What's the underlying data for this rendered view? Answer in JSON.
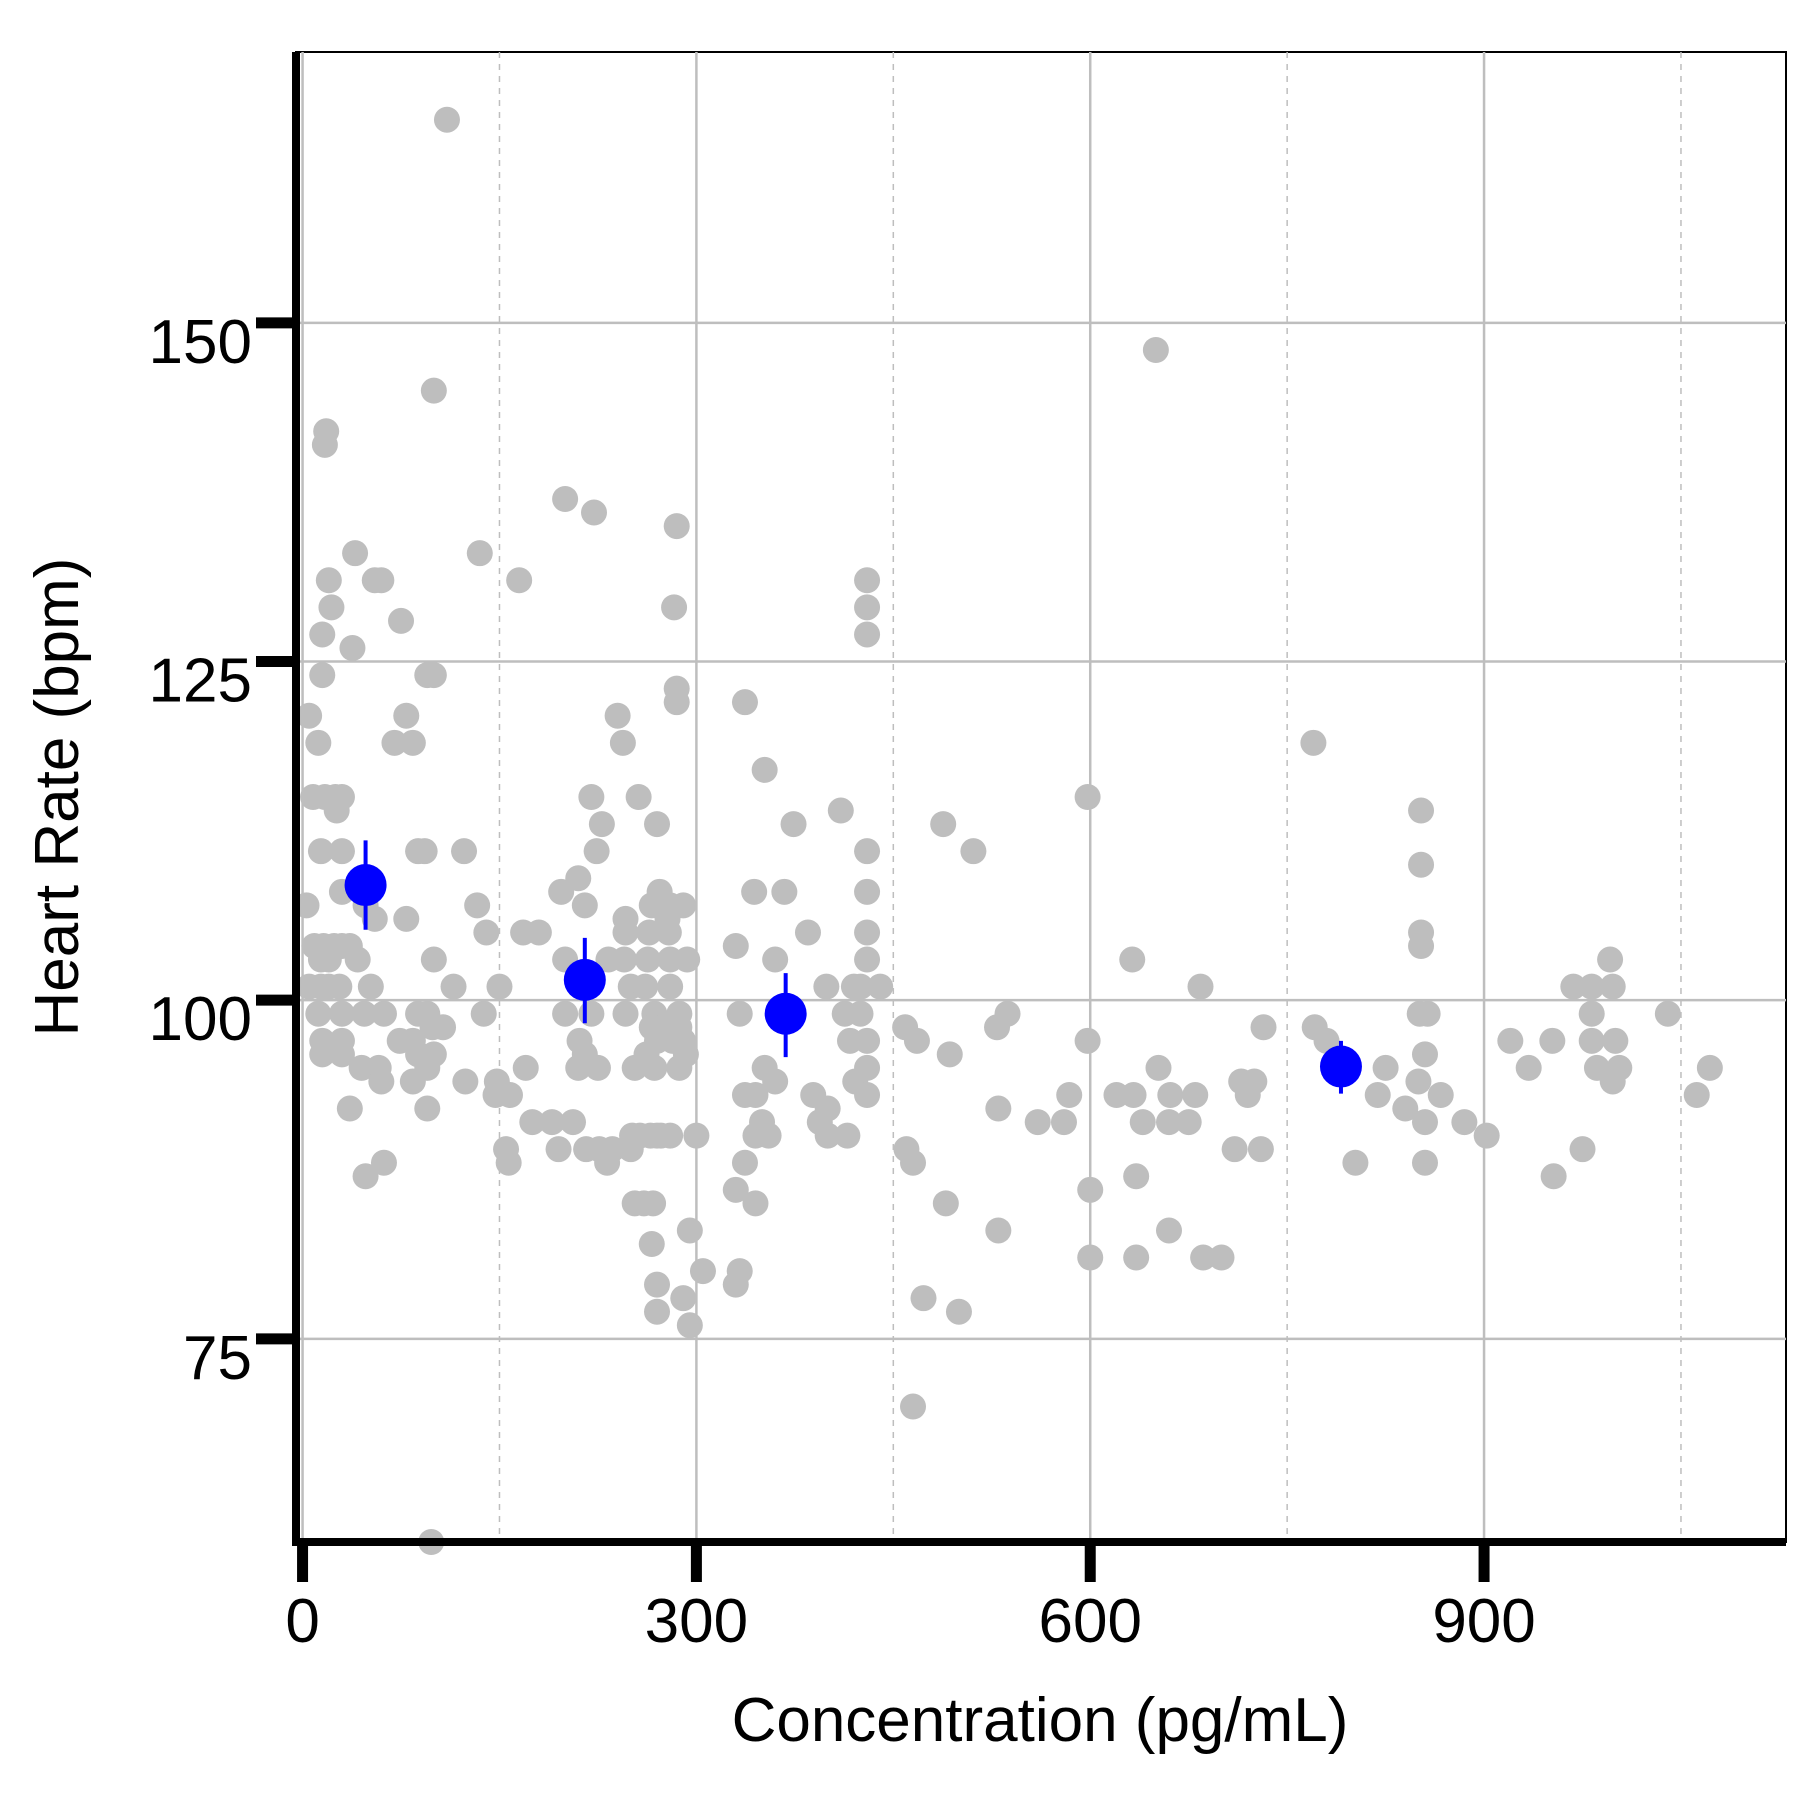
{
  "chart_data": {
    "type": "scatter",
    "title": "",
    "xlabel": "Concentration (pg/mL)",
    "ylabel": "Heart Rate (bpm)",
    "xlim": [
      -5,
      1130
    ],
    "ylim": [
      60,
      170
    ],
    "x_ticks": [
      0,
      300,
      600,
      900
    ],
    "y_ticks": [
      75,
      100,
      125,
      150
    ],
    "x_minor_grid": [
      150,
      450,
      750,
      1050
    ],
    "grid": true,
    "colors": {
      "raw": "#bebebe",
      "summary": "#0000ff",
      "grid": "#bebebe",
      "axis": "#000000"
    },
    "series": [
      {
        "kind": "raw",
        "points": [
          [
            110,
            165
          ],
          [
            650,
            148
          ],
          [
            100,
            145
          ],
          [
            18,
            142
          ],
          [
            17,
            141
          ],
          [
            200,
            137
          ],
          [
            222,
            136
          ],
          [
            285,
            135
          ],
          [
            40,
            133
          ],
          [
            135,
            133
          ],
          [
            55,
            131
          ],
          [
            60,
            131
          ],
          [
            20,
            131
          ],
          [
            165,
            131
          ],
          [
            430,
            131
          ],
          [
            22,
            129
          ],
          [
            75,
            128
          ],
          [
            283,
            129
          ],
          [
            430,
            129
          ],
          [
            15,
            127
          ],
          [
            38,
            126
          ],
          [
            430,
            127
          ],
          [
            15,
            124
          ],
          [
            95,
            124
          ],
          [
            100,
            124
          ],
          [
            285,
            123
          ],
          [
            285,
            122
          ],
          [
            337,
            122
          ],
          [
            5,
            121
          ],
          [
            79,
            121
          ],
          [
            240,
            121
          ],
          [
            12,
            119
          ],
          [
            70,
            119
          ],
          [
            84,
            119
          ],
          [
            244,
            119
          ],
          [
            770,
            119
          ],
          [
            352,
            117
          ],
          [
            8,
            115
          ],
          [
            17,
            115
          ],
          [
            25,
            115
          ],
          [
            30,
            115
          ],
          [
            220,
            115
          ],
          [
            256,
            115
          ],
          [
            598,
            115
          ],
          [
            26,
            114
          ],
          [
            410,
            114
          ],
          [
            852,
            114
          ],
          [
            228,
            113
          ],
          [
            270,
            113
          ],
          [
            374,
            113
          ],
          [
            488,
            113
          ],
          [
            14,
            111
          ],
          [
            30,
            111
          ],
          [
            88,
            111
          ],
          [
            93,
            111
          ],
          [
            123,
            111
          ],
          [
            224,
            111
          ],
          [
            430,
            111
          ],
          [
            511,
            111
          ],
          [
            852,
            110
          ],
          [
            210,
            109
          ],
          [
            30,
            108
          ],
          [
            197,
            108
          ],
          [
            272,
            108
          ],
          [
            344,
            108
          ],
          [
            367,
            108
          ],
          [
            430,
            108
          ],
          [
            3,
            107
          ],
          [
            48,
            107
          ],
          [
            133,
            107
          ],
          [
            215,
            107
          ],
          [
            266,
            107
          ],
          [
            280,
            107
          ],
          [
            290,
            107
          ],
          [
            55,
            106
          ],
          [
            79,
            106
          ],
          [
            246,
            106
          ],
          [
            278,
            106
          ],
          [
            140,
            105
          ],
          [
            168,
            105
          ],
          [
            180,
            105
          ],
          [
            246,
            105
          ],
          [
            264,
            105
          ],
          [
            279,
            105
          ],
          [
            385,
            105
          ],
          [
            430,
            105
          ],
          [
            852,
            105
          ],
          [
            852,
            104
          ],
          [
            330,
            104
          ],
          [
            9,
            104
          ],
          [
            16,
            104
          ],
          [
            24,
            104
          ],
          [
            30,
            104
          ],
          [
            36,
            104
          ],
          [
            20,
            103
          ],
          [
            14,
            103
          ],
          [
            42,
            103
          ],
          [
            100,
            103
          ],
          [
            200,
            103
          ],
          [
            233,
            103
          ],
          [
            245,
            103
          ],
          [
            263,
            103
          ],
          [
            280,
            103
          ],
          [
            293,
            103
          ],
          [
            360,
            103
          ],
          [
            430,
            103
          ],
          [
            632,
            103
          ],
          [
            996,
            103
          ],
          [
            5,
            101
          ],
          [
            14,
            101
          ],
          [
            20,
            101
          ],
          [
            28,
            101
          ],
          [
            52,
            101
          ],
          [
            115,
            101
          ],
          [
            150,
            101
          ],
          [
            213,
            101
          ],
          [
            250,
            101
          ],
          [
            261,
            101
          ],
          [
            280,
            101
          ],
          [
            399,
            101
          ],
          [
            420,
            101
          ],
          [
            425,
            101
          ],
          [
            440,
            101
          ],
          [
            684,
            101
          ],
          [
            968,
            101
          ],
          [
            982,
            101
          ],
          [
            998,
            101
          ],
          [
            12,
            99
          ],
          [
            30,
            99
          ],
          [
            47,
            99
          ],
          [
            62,
            99
          ],
          [
            88,
            99
          ],
          [
            95,
            99
          ],
          [
            138,
            99
          ],
          [
            200,
            99
          ],
          [
            220,
            99
          ],
          [
            246,
            99
          ],
          [
            268,
            99
          ],
          [
            287,
            99
          ],
          [
            333,
            99
          ],
          [
            413,
            99
          ],
          [
            425,
            99
          ],
          [
            851,
            99
          ],
          [
            857,
            99
          ],
          [
            1040,
            99
          ],
          [
            982,
            99
          ],
          [
            99,
            98
          ],
          [
            107,
            98
          ],
          [
            266,
            98
          ],
          [
            276,
            98
          ],
          [
            287,
            98
          ],
          [
            459,
            98
          ],
          [
            529,
            98
          ],
          [
            771,
            98
          ],
          [
            537,
            99
          ],
          [
            732,
            98
          ],
          [
            15,
            97
          ],
          [
            30,
            97
          ],
          [
            74,
            97
          ],
          [
            84,
            97
          ],
          [
            211,
            97
          ],
          [
            270,
            97
          ],
          [
            282,
            97
          ],
          [
            290,
            97
          ],
          [
            417,
            97
          ],
          [
            430,
            97
          ],
          [
            468,
            97
          ],
          [
            598,
            97
          ],
          [
            780,
            97
          ],
          [
            920,
            97
          ],
          [
            952,
            97
          ],
          [
            982,
            97
          ],
          [
            1000,
            97
          ],
          [
            15,
            96
          ],
          [
            30,
            96
          ],
          [
            88,
            96
          ],
          [
            100,
            96
          ],
          [
            215,
            96
          ],
          [
            262,
            96
          ],
          [
            292,
            96
          ],
          [
            493,
            96
          ],
          [
            855,
            96
          ],
          [
            45,
            95
          ],
          [
            58,
            95
          ],
          [
            95,
            95
          ],
          [
            170,
            95
          ],
          [
            210,
            95
          ],
          [
            225,
            95
          ],
          [
            253,
            95
          ],
          [
            268,
            95
          ],
          [
            287,
            95
          ],
          [
            352,
            95
          ],
          [
            430,
            95
          ],
          [
            652,
            95
          ],
          [
            825,
            95
          ],
          [
            934,
            95
          ],
          [
            986,
            95
          ],
          [
            1003,
            95
          ],
          [
            1072,
            95
          ],
          [
            60,
            94
          ],
          [
            84,
            94
          ],
          [
            124,
            94
          ],
          [
            148,
            94
          ],
          [
            360,
            94
          ],
          [
            421,
            94
          ],
          [
            715,
            94
          ],
          [
            725,
            94
          ],
          [
            850,
            94
          ],
          [
            998,
            94
          ],
          [
            147,
            93
          ],
          [
            158,
            93
          ],
          [
            337,
            93
          ],
          [
            345,
            93
          ],
          [
            389,
            93
          ],
          [
            430,
            93
          ],
          [
            584,
            93
          ],
          [
            620,
            93
          ],
          [
            633,
            93
          ],
          [
            661,
            93
          ],
          [
            680,
            93
          ],
          [
            720,
            93
          ],
          [
            819,
            93
          ],
          [
            867,
            93
          ],
          [
            1062,
            93
          ],
          [
            36,
            92
          ],
          [
            95,
            92
          ],
          [
            400,
            92
          ],
          [
            530,
            92
          ],
          [
            840,
            92
          ],
          [
            190,
            91
          ],
          [
            350,
            91
          ],
          [
            394,
            91
          ],
          [
            560,
            91
          ],
          [
            580,
            91
          ],
          [
            640,
            91
          ],
          [
            660,
            91
          ],
          [
            675,
            91
          ],
          [
            855,
            91
          ],
          [
            885,
            91
          ],
          [
            270,
            90
          ],
          [
            300,
            90
          ],
          [
            345,
            90
          ],
          [
            355,
            90
          ],
          [
            400,
            90
          ],
          [
            415,
            90
          ],
          [
            460,
            89
          ],
          [
            710,
            89
          ],
          [
            730,
            89
          ],
          [
            195,
            89
          ],
          [
            216,
            89
          ],
          [
            226,
            89
          ],
          [
            236,
            89
          ],
          [
            250,
            89
          ],
          [
            251,
            90
          ],
          [
            257,
            90
          ],
          [
            265,
            90
          ],
          [
            273,
            90
          ],
          [
            280,
            90
          ],
          [
            155,
            89
          ],
          [
            157,
            88
          ],
          [
            175,
            91
          ],
          [
            206,
            91
          ],
          [
            62,
            88
          ],
          [
            232,
            88
          ],
          [
            337,
            88
          ],
          [
            465,
            88
          ],
          [
            802,
            88
          ],
          [
            855,
            88
          ],
          [
            975,
            89
          ],
          [
            902,
            90
          ],
          [
            48,
            87
          ],
          [
            635,
            87
          ],
          [
            953,
            87
          ],
          [
            600,
            86
          ],
          [
            253,
            85
          ],
          [
            260,
            85
          ],
          [
            267,
            85
          ],
          [
            330,
            86
          ],
          [
            345,
            85
          ],
          [
            490,
            85
          ],
          [
            266,
            82
          ],
          [
            295,
            83
          ],
          [
            530,
            83
          ],
          [
            660,
            83
          ],
          [
            600,
            81
          ],
          [
            635,
            81
          ],
          [
            686,
            81
          ],
          [
            700,
            81
          ],
          [
            305,
            80
          ],
          [
            333,
            80
          ],
          [
            270,
            79
          ],
          [
            330,
            79
          ],
          [
            270,
            77
          ],
          [
            290,
            78
          ],
          [
            473,
            78
          ],
          [
            500,
            77
          ],
          [
            295,
            76
          ],
          [
            465,
            70
          ],
          [
            98,
            60
          ]
        ]
      },
      {
        "kind": "summary",
        "points": [
          [
            48,
            108.5,
            105.2,
            111.8
          ],
          [
            215,
            101.5,
            98.3,
            104.6
          ],
          [
            368,
            99.0,
            95.8,
            102.0
          ],
          [
            791,
            95.1,
            93.1,
            97.0
          ]
        ]
      }
    ]
  }
}
